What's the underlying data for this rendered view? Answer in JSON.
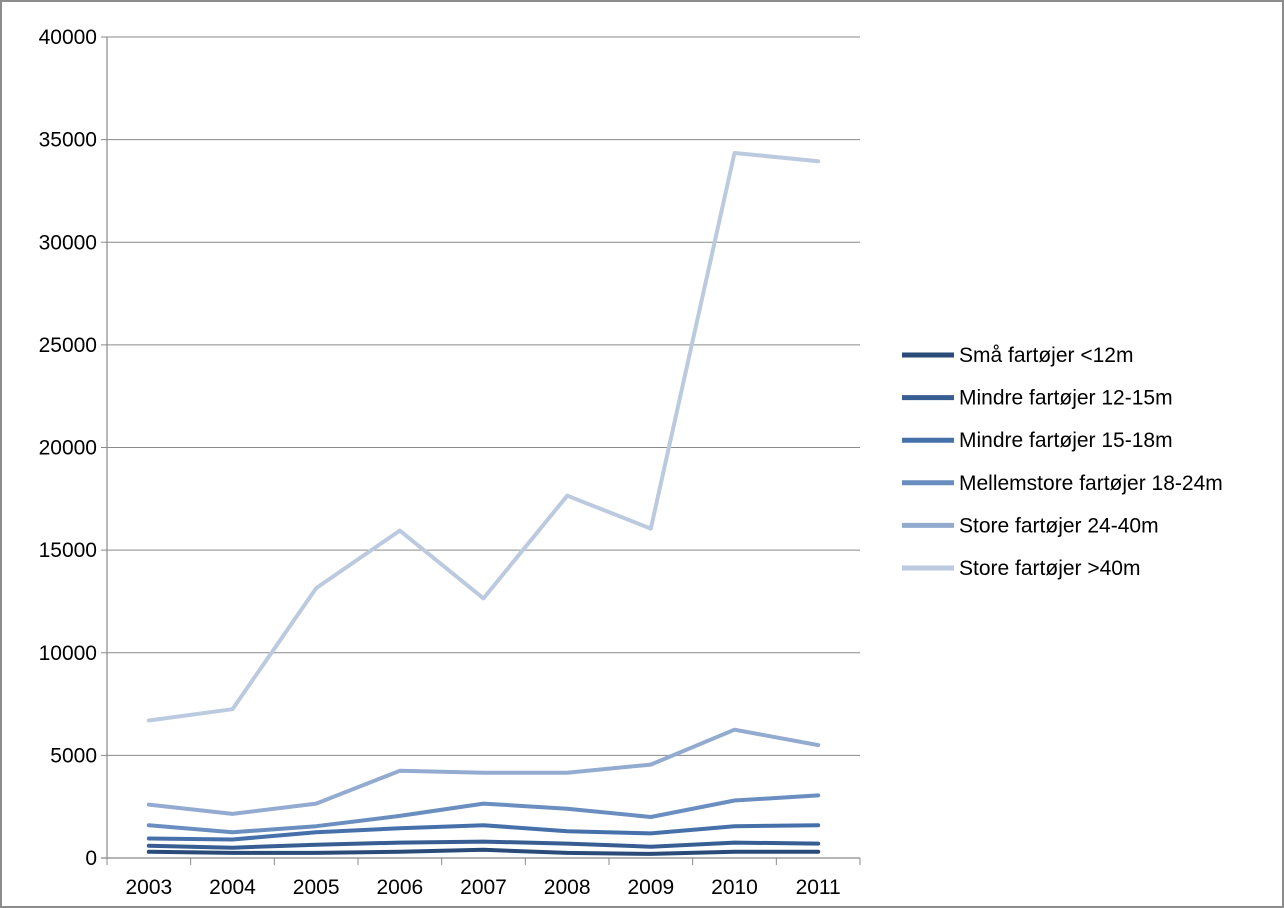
{
  "chart_data": {
    "type": "line",
    "title": "",
    "xlabel": "",
    "ylabel": "",
    "x": [
      "2003",
      "2004",
      "2005",
      "2006",
      "2007",
      "2008",
      "2009",
      "2010",
      "2011"
    ],
    "ylim": [
      0,
      40000
    ],
    "yticks": [
      "0",
      "5000",
      "10000",
      "15000",
      "20000",
      "25000",
      "30000",
      "35000",
      "40000"
    ],
    "grid": true,
    "legend_position": "right",
    "series": [
      {
        "name": "Små fartøjer <12m",
        "color": "#2a4a78",
        "values": [
          300,
          250,
          250,
          300,
          400,
          250,
          200,
          300,
          300
        ]
      },
      {
        "name": "Mindre fartøjer 12-15m",
        "color": "#375d92",
        "values": [
          600,
          500,
          650,
          750,
          800,
          700,
          550,
          750,
          700
        ]
      },
      {
        "name": "Mindre fartøjer 15-18m",
        "color": "#4670aa",
        "values": [
          950,
          900,
          1250,
          1450,
          1600,
          1300,
          1200,
          1550,
          1600
        ]
      },
      {
        "name": "Mellemstore fartøjer 18-24m",
        "color": "#6a8ebf",
        "values": [
          1600,
          1250,
          1550,
          2050,
          2650,
          2400,
          2000,
          2800,
          3050
        ]
      },
      {
        "name": "Store fartøjer 24-40m",
        "color": "#93abd0",
        "values": [
          2600,
          2150,
          2650,
          4250,
          4150,
          4150,
          4550,
          6250,
          5500
        ]
      },
      {
        "name": "Store fartøjer >40m",
        "color": "#bccae0",
        "values": [
          6700,
          7250,
          13150,
          15950,
          12650,
          17650,
          16050,
          34350,
          33950
        ]
      }
    ]
  }
}
